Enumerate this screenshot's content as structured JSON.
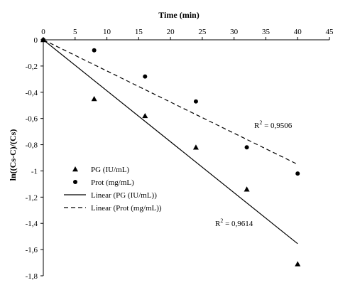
{
  "chart_data": {
    "type": "scatter",
    "xlabel": "Time (min)",
    "ylabel": "ln((Cs-C)/(Cs)",
    "xlim": [
      0,
      45
    ],
    "ylim": [
      -1.8,
      0
    ],
    "x_ticks": [
      "0",
      "5",
      "10",
      "15",
      "20",
      "25",
      "30",
      "35",
      "40",
      "45"
    ],
    "y_ticks": [
      "0",
      "-0,2",
      "-0,4",
      "-0,6",
      "-0,8",
      "-1",
      "-1,2",
      "-1,4",
      "-1,6",
      "-1,8"
    ],
    "x_axis_position": "top",
    "grid": false,
    "legend_position": "bottom-left",
    "series": [
      {
        "name": "PG (IU/mL)",
        "marker": "triangle",
        "x": [
          0,
          8,
          16,
          24,
          32,
          40
        ],
        "y": [
          0,
          -0.45,
          -0.58,
          -0.82,
          -1.14,
          -1.71
        ]
      },
      {
        "name": "Prot (mg/mL)",
        "marker": "circle",
        "x": [
          0,
          8,
          16,
          24,
          32,
          40
        ],
        "y": [
          0,
          -0.08,
          -0.28,
          -0.47,
          -0.82,
          -1.02
        ]
      }
    ],
    "trendlines": [
      {
        "name": "Linear (PG (IU/mL))",
        "style": "solid",
        "x": [
          0,
          40
        ],
        "y": [
          0,
          -1.555
        ],
        "r2_base": "R",
        "r2_exp": "2",
        "r2_value": " = 0,9614"
      },
      {
        "name": "Linear (Prot (mg/mL))",
        "style": "dashed",
        "x": [
          0,
          40
        ],
        "y": [
          0,
          -0.95
        ],
        "r2_base": "R",
        "r2_exp": "2",
        "r2_value": " = 0,9506"
      }
    ]
  }
}
